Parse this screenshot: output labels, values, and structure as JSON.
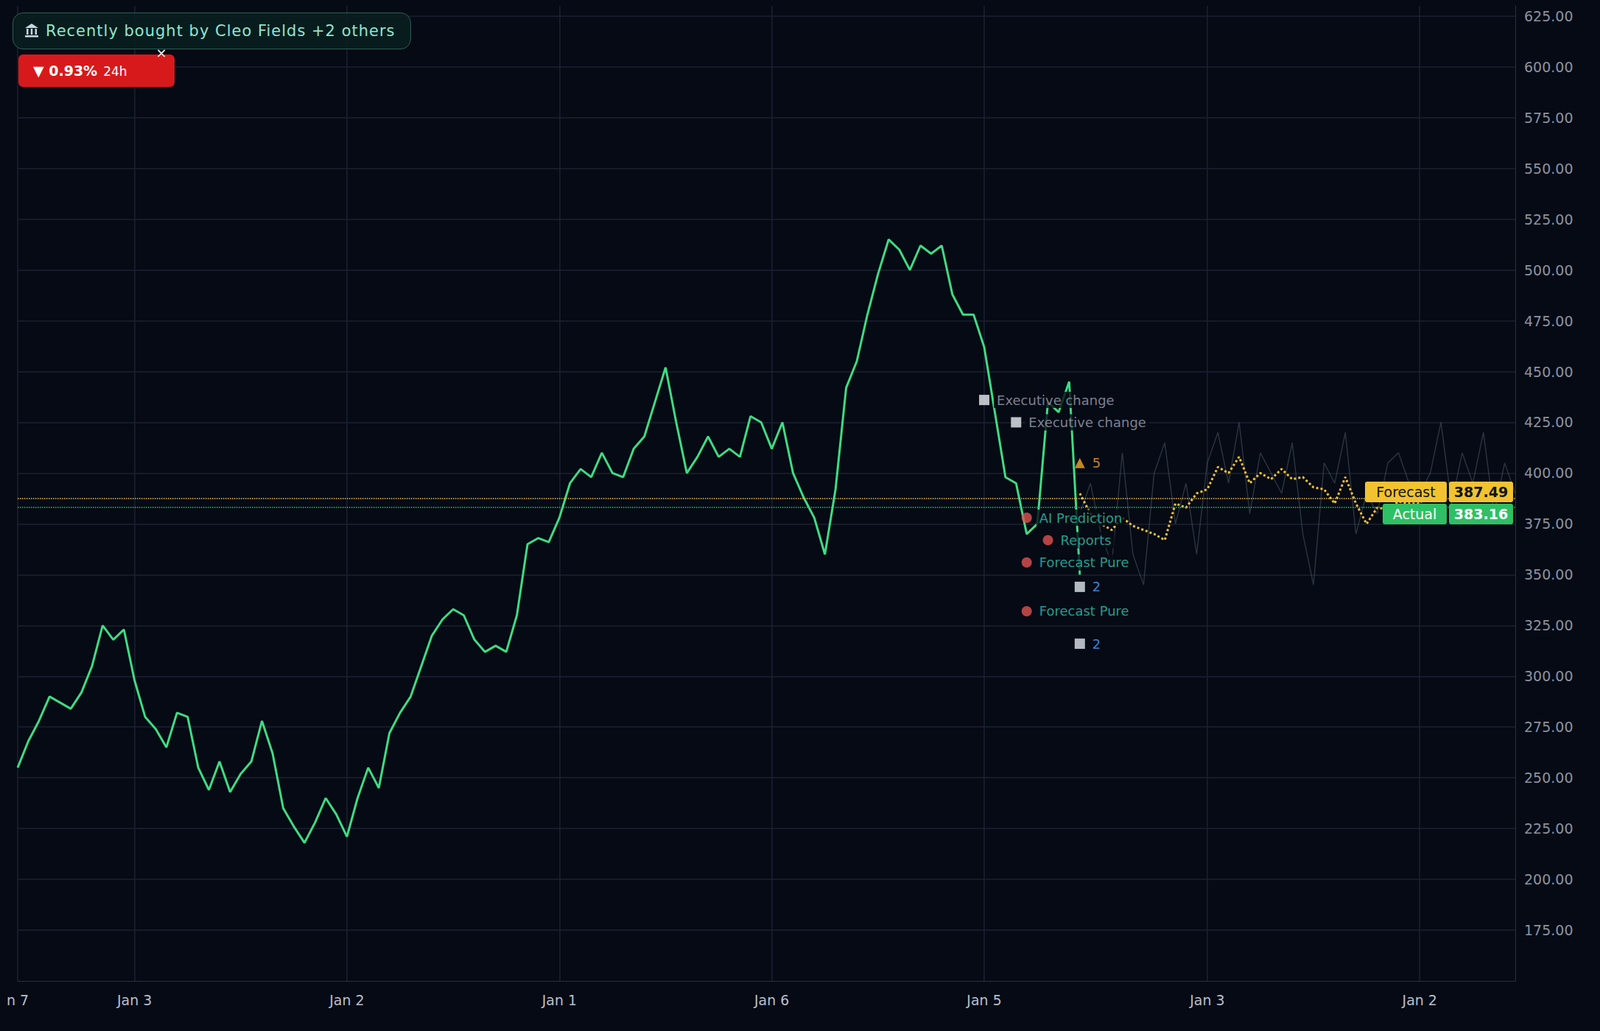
{
  "chart_data": {
    "type": "line",
    "categories": [
      "n 7",
      null,
      null,
      null,
      null,
      null,
      null,
      null,
      null,
      null,
      null,
      "Jan 3",
      null,
      null,
      null,
      null,
      null,
      null,
      null,
      null,
      null,
      null,
      null,
      null,
      null,
      null,
      null,
      null,
      null,
      null,
      null,
      "Jan 2",
      null,
      null,
      null,
      null,
      null,
      null,
      null,
      null,
      null,
      null,
      null,
      null,
      null,
      null,
      null,
      null,
      null,
      null,
      null,
      "Jan 1",
      null,
      null,
      null,
      null,
      null,
      null,
      null,
      null,
      null,
      null,
      null,
      null,
      null,
      null,
      null,
      null,
      null,
      null,
      null,
      "Jan 6",
      null,
      null,
      null,
      null,
      null,
      null,
      null,
      null,
      null,
      null,
      null,
      null,
      null,
      null,
      null,
      null,
      null,
      null,
      null,
      "Jan 5",
      null,
      null,
      null,
      null,
      null,
      null,
      null,
      null,
      null,
      null,
      null,
      null,
      null,
      null,
      null,
      null,
      null,
      null,
      null,
      null,
      "Jan 3",
      null,
      null,
      null,
      null,
      null,
      null,
      null,
      null,
      null,
      null,
      null,
      null,
      null,
      null,
      null,
      null,
      null,
      null,
      null,
      "Jan 2",
      null,
      null,
      null,
      null,
      null,
      null,
      null,
      null,
      null
    ],
    "series": [
      {
        "name": "Actual",
        "color": "#3ddc84",
        "line_style": "solid",
        "values": [
          255,
          268,
          278,
          290,
          287,
          284,
          292,
          305,
          325,
          318,
          323,
          298,
          280,
          274,
          265,
          282,
          280,
          255,
          244,
          258,
          243,
          252,
          258,
          278,
          262,
          235,
          226,
          218,
          228,
          240,
          232,
          221,
          240,
          255,
          245,
          272,
          282,
          290,
          305,
          320,
          328,
          333,
          330,
          318,
          312,
          315,
          312,
          330,
          365,
          368,
          366,
          378,
          395,
          402,
          398,
          410,
          400,
          398,
          412,
          418,
          435,
          452,
          425,
          400,
          408,
          418,
          408,
          412,
          408,
          428,
          425,
          412,
          425,
          400,
          388,
          378,
          360,
          392,
          442,
          455,
          478,
          498,
          515,
          510,
          500,
          512,
          508,
          512,
          488,
          478,
          478,
          462,
          430,
          398,
          395,
          370,
          375,
          435,
          430,
          445,
          350,
          null,
          null,
          null,
          null,
          null,
          null,
          null,
          null,
          null,
          null,
          null,
          null,
          null,
          null,
          null,
          null,
          null,
          null,
          null,
          null,
          null,
          null,
          null,
          null,
          null,
          null,
          null,
          null,
          null,
          null,
          null,
          null,
          null,
          null,
          null,
          null,
          null,
          null,
          null,
          null,
          null
        ]
      },
      {
        "name": "Forecast",
        "color": "#f2c230",
        "line_style": "dotted",
        "values": [
          null,
          null,
          null,
          null,
          null,
          null,
          null,
          null,
          null,
          null,
          null,
          null,
          null,
          null,
          null,
          null,
          null,
          null,
          null,
          null,
          null,
          null,
          null,
          null,
          null,
          null,
          null,
          null,
          null,
          null,
          null,
          null,
          null,
          null,
          null,
          null,
          null,
          null,
          null,
          null,
          null,
          null,
          null,
          null,
          null,
          null,
          null,
          null,
          null,
          null,
          null,
          null,
          null,
          null,
          null,
          null,
          null,
          null,
          null,
          null,
          null,
          null,
          null,
          null,
          null,
          null,
          null,
          null,
          null,
          null,
          null,
          null,
          null,
          null,
          null,
          null,
          null,
          null,
          null,
          null,
          null,
          null,
          null,
          null,
          null,
          null,
          null,
          null,
          null,
          null,
          null,
          null,
          null,
          null,
          null,
          null,
          null,
          null,
          null,
          null,
          390,
          380,
          375,
          372,
          378,
          374,
          372,
          370,
          367,
          385,
          383,
          390,
          392,
          403,
          400,
          408,
          395,
          400,
          397,
          402,
          397,
          398,
          393,
          392,
          385,
          398,
          385,
          375,
          383,
          382,
          386,
          385,
          385,
          392,
          null,
          null,
          null,
          null,
          null,
          null,
          null,
          null
        ]
      },
      {
        "color": "#5b6372",
        "line_style": "solid",
        "values": [
          null,
          null,
          null,
          null,
          null,
          null,
          null,
          null,
          null,
          null,
          null,
          null,
          null,
          null,
          null,
          null,
          null,
          null,
          null,
          null,
          null,
          null,
          null,
          null,
          null,
          null,
          null,
          null,
          null,
          null,
          null,
          null,
          null,
          null,
          null,
          null,
          null,
          null,
          null,
          null,
          null,
          null,
          null,
          null,
          null,
          null,
          null,
          null,
          null,
          null,
          null,
          null,
          null,
          null,
          null,
          null,
          null,
          null,
          null,
          null,
          null,
          null,
          null,
          null,
          null,
          null,
          null,
          null,
          null,
          null,
          null,
          null,
          null,
          null,
          null,
          null,
          null,
          null,
          null,
          null,
          null,
          null,
          null,
          null,
          null,
          null,
          null,
          null,
          null,
          null,
          null,
          null,
          null,
          null,
          null,
          null,
          null,
          null,
          null,
          null,
          380,
          395,
          370,
          355,
          410,
          360,
          345,
          400,
          415,
          375,
          395,
          360,
          405,
          420,
          395,
          425,
          380,
          410,
          400,
          390,
          415,
          370,
          345,
          405,
          395,
          420,
          370,
          390,
          380,
          405,
          410,
          395,
          390,
          400,
          425,
          385,
          410,
          395,
          420,
          380,
          405,
          390
        ]
      }
    ],
    "ylim": [
      150,
      630
    ],
    "yticks": [
      {
        "value": 175,
        "label": "175.00"
      },
      {
        "value": 200,
        "label": "200.00"
      },
      {
        "value": 225,
        "label": "225.00"
      },
      {
        "value": 250,
        "label": "250.00"
      },
      {
        "value": 275,
        "label": "275.00"
      },
      {
        "value": 300,
        "label": "300.00"
      },
      {
        "value": 325,
        "label": "325.00"
      },
      {
        "value": 350,
        "label": "350.00"
      },
      {
        "value": 375,
        "label": "375.00"
      },
      {
        "value": 400,
        "label": "400.00"
      },
      {
        "value": 425,
        "label": "425.00"
      },
      {
        "value": 450,
        "label": "450.00"
      },
      {
        "value": 475,
        "label": "475.00"
      },
      {
        "value": 500,
        "label": "500.00"
      },
      {
        "value": 525,
        "label": "525.00"
      },
      {
        "value": 550,
        "label": "550.00"
      },
      {
        "value": 575,
        "label": "575.00"
      },
      {
        "value": 600,
        "label": "600.00"
      },
      {
        "value": 625,
        "label": "625.00"
      }
    ],
    "grid": true,
    "price_lines": [
      {
        "label": "Forecast",
        "value": 387.49,
        "color": "#f2c230",
        "line_style": "dotted"
      },
      {
        "label": "Actual",
        "value": 383.16,
        "color": "#2fbf64",
        "line_style": "dotted"
      }
    ],
    "annotations": [
      {
        "text": "Executive change",
        "x": 91,
        "y": 436,
        "marker": "document",
        "color": "#9aa3b5"
      },
      {
        "text": "Executive change",
        "x": 94,
        "y": 425,
        "marker": "document",
        "color": "#9aa3b5"
      },
      {
        "text": "5",
        "x": 100,
        "y": 405,
        "marker": "bell",
        "color": "#f5a623"
      },
      {
        "text": "AI Prediction",
        "x": 95,
        "y": 378,
        "marker": "target",
        "color": "#2ec4b0"
      },
      {
        "text": "Reports",
        "x": 97,
        "y": 367,
        "marker": "target",
        "color": "#2ec4b0"
      },
      {
        "text": "Forecast Pure",
        "x": 95,
        "y": 356,
        "marker": "target",
        "color": "#2ec4b0"
      },
      {
        "text": "2",
        "x": 100,
        "y": 344,
        "marker": "chart",
        "color": "#4aa3ff"
      },
      {
        "text": "Forecast Pure",
        "x": 95,
        "y": 332,
        "marker": "target",
        "color": "#2ec4b0"
      },
      {
        "text": "2",
        "x": 100,
        "y": 316,
        "marker": "chart",
        "color": "#4aa3ff"
      }
    ],
    "notice": {
      "text": "Recently bought by Cleo Fields +2 others"
    },
    "change": {
      "text": "▼ 0.93%",
      "period": "24h",
      "close": "×",
      "color": "#d7191c"
    }
  }
}
